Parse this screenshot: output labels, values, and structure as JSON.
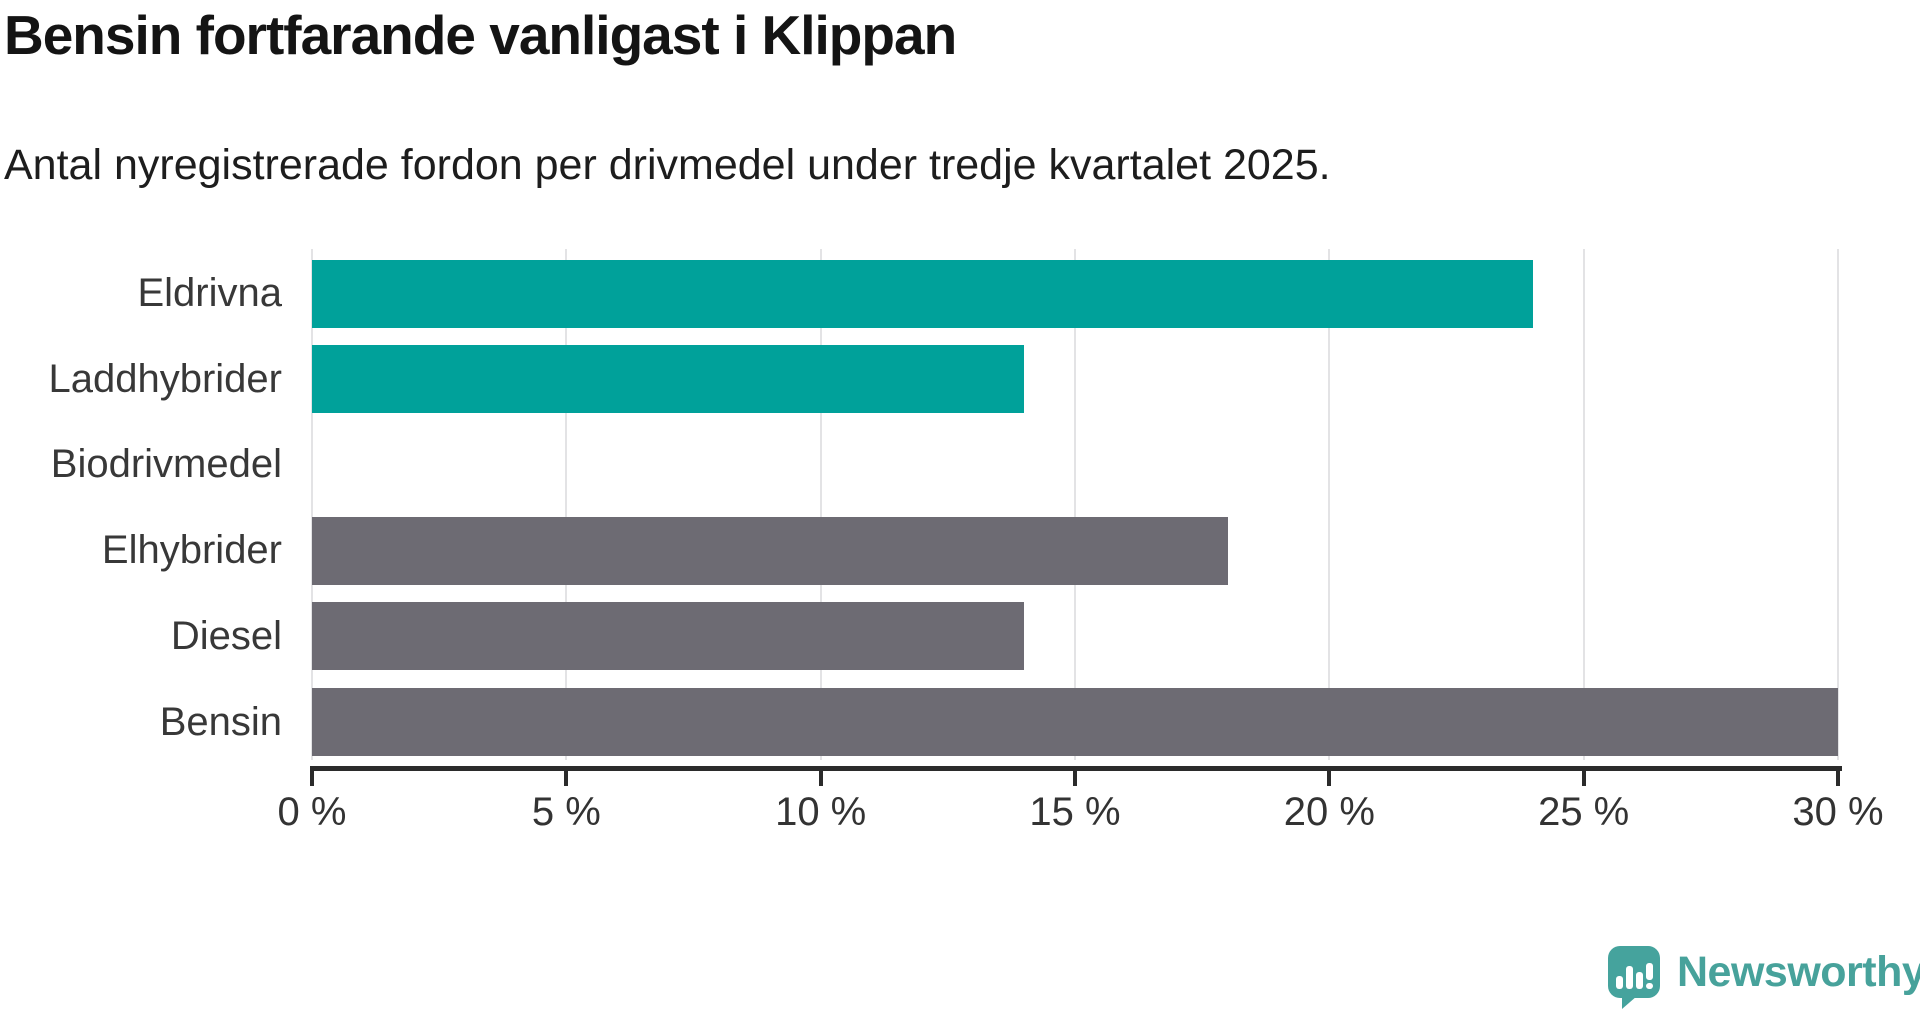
{
  "header": {
    "title": "Bensin fortfarande vanligast i Klippan",
    "subtitle": "Antal nyregistrerade fordon per drivmedel under tredje kvartalet 2025."
  },
  "chart_data": {
    "type": "bar",
    "orientation": "horizontal",
    "title": "Bensin fortfarande vanligast i Klippan",
    "subtitle": "Antal nyregistrerade fordon per drivmedel under tredje kvartalet 2025.",
    "categories": [
      "Eldrivna",
      "Laddhybrider",
      "Biodrivmedel",
      "Elhybrider",
      "Diesel",
      "Bensin"
    ],
    "values": [
      24,
      14,
      0,
      18,
      14,
      30
    ],
    "unit": "%",
    "xlim": [
      0,
      30
    ],
    "xticks": [
      0,
      5,
      10,
      15,
      20,
      25,
      30
    ],
    "xtick_labels": [
      "0 %",
      "5 %",
      "10 %",
      "15 %",
      "20 %",
      "25 %",
      "30 %"
    ],
    "bar_colors": [
      "#00a19a",
      "#00a19a",
      "#00a19a",
      "#6d6b73",
      "#6d6b73",
      "#6d6b73"
    ],
    "grid": true,
    "legend": false
  },
  "colors": {
    "accent_teal": "#00a19a",
    "neutral_gray": "#6d6b73",
    "gridline": "#e3e3e5",
    "axis": "#2b2b2b",
    "text_dark": "#141414",
    "text_label": "#383838",
    "logo_teal": "#47a29b"
  },
  "logo": {
    "text": "Newsworthy",
    "icon": "speech-bubble-bar-chart-icon"
  }
}
